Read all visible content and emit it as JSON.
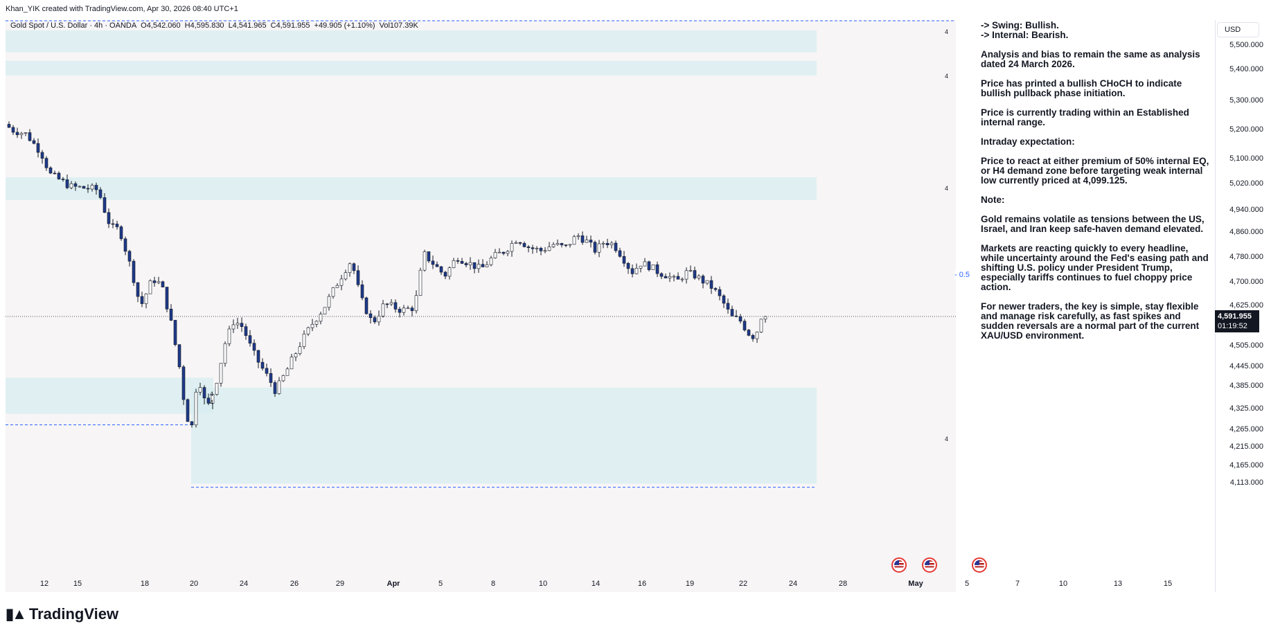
{
  "header": {
    "credit": "Khan_YIK created with TradingView.com, Apr 30, 2026 08:40 UTC+1"
  },
  "legend": {
    "symbol": "Gold Spot / U.S. Dollar · 4h · OANDA",
    "open": "O4,542.060",
    "high": "H4,595.830",
    "low": "L4,541.965",
    "close": "C4,591.955",
    "change": "+49.905 (+1.10%)",
    "volume": "Vol107.39K"
  },
  "price_axis": {
    "currency": "USD",
    "current_price": "4,591.955",
    "countdown": "01:19:52"
  },
  "level_marker": "- 0.5",
  "zone_tags": [
    "4",
    "4",
    "4",
    "4",
    "4",
    "4"
  ],
  "notes": [
    "-> Swing:  Bullish.\n-> Internal:  Bearish.",
    "Analysis and bias to remain the same as analysis dated 24 March 2026.",
    "Price has printed a bullish CHoCH to indicate bullish pullback phase initiation.",
    "Price is currently trading within an Established internal range.",
    "Intraday expectation:",
    "Price to react at either premium of 50% internal EQ, or H4 demand zone before targeting weak internal low currently priced at 4,099.125.",
    "Note:",
    "Gold remains volatile as tensions between the US, Israel, and Iran keep safe-haven demand elevated.",
    "Markets are reacting quickly to every headline, while uncertainty around the Fed's easing path and shifting U.S. policy under President Trump, especially tariffs continues to fuel choppy price action.",
    "For newer traders, the key is simple, stay flexible and manage risk carefully, as fast spikes and sudden reversals are a normal part of the current XAU/USD environment."
  ],
  "logo": {
    "text": "TradingView"
  },
  "colors": {
    "candle_up": "#ffffff",
    "candle_down": "#1e3a8a",
    "wick": "#131722",
    "zone": "#d8eef0",
    "dashed_line": "#2962ff",
    "background": "#f7f5f6"
  },
  "chart_data": {
    "type": "candlestick",
    "title": "Gold Spot / U.S. Dollar · 4h · OANDA",
    "ylim": [
      4090,
      5560
    ],
    "y_ticks": [
      5500,
      5400,
      5300,
      5200,
      5100,
      5020,
      4940,
      4860,
      4780,
      4700,
      4625,
      4505,
      4445,
      4385,
      4325,
      4265,
      4215,
      4165,
      4113
    ],
    "y_tick_labels": [
      "5,500.000",
      "5,400.000",
      "5,300.000",
      "5,200.000",
      "5,100.000",
      "5,020.000",
      "4,940.000",
      "4,860.000",
      "4,780.000",
      "4,700.000",
      "4,625.000",
      "4,505.000",
      "4,445.000",
      "4,385.000",
      "4,325.000",
      "4,265.000",
      "4,215.000",
      "4,165.000",
      "4,113.000"
    ],
    "x_labels": [
      "12",
      "15",
      "18",
      "20",
      "24",
      "26",
      "29",
      "Apr",
      "5",
      "8",
      "10",
      "14",
      "16",
      "19",
      "22",
      "24",
      "28",
      "May",
      "5",
      "7",
      "10",
      "13",
      "15"
    ],
    "current_price": 4591.955,
    "zones": [
      {
        "top": 5560,
        "bottom": 5470
      },
      {
        "top": 5435,
        "bottom": 5380
      },
      {
        "top": 5040,
        "bottom": 4970
      },
      {
        "top": 4410,
        "bottom": 4310
      },
      {
        "top": 4380,
        "bottom": 4110
      }
    ],
    "levels": [
      {
        "name": "0.5",
        "value": 4850
      },
      {
        "name": "swing high",
        "value": 5565
      },
      {
        "name": "prior low",
        "value": 4278
      },
      {
        "name": "weak internal low",
        "value": 4099.125
      }
    ],
    "anchors": [
      [
        0,
        5218
      ],
      [
        6,
        5195
      ],
      [
        14,
        5185
      ],
      [
        24,
        5120
      ],
      [
        30,
        5050
      ],
      [
        44,
        5010
      ],
      [
        56,
        5005
      ],
      [
        62,
        5000
      ],
      [
        70,
        4880
      ],
      [
        76,
        4870
      ],
      [
        84,
        4740
      ],
      [
        90,
        4620
      ],
      [
        98,
        4710
      ],
      [
        104,
        4690
      ],
      [
        110,
        4580
      ],
      [
        116,
        4440
      ],
      [
        120,
        4310
      ],
      [
        124,
        4270
      ],
      [
        128,
        4420
      ],
      [
        134,
        4320
      ],
      [
        140,
        4390
      ],
      [
        146,
        4510
      ],
      [
        152,
        4580
      ],
      [
        158,
        4560
      ],
      [
        164,
        4490
      ],
      [
        172,
        4430
      ],
      [
        180,
        4370
      ],
      [
        188,
        4440
      ],
      [
        196,
        4510
      ],
      [
        204,
        4570
      ],
      [
        212,
        4620
      ],
      [
        220,
        4690
      ],
      [
        226,
        4740
      ],
      [
        230,
        4770
      ],
      [
        236,
        4650
      ],
      [
        244,
        4570
      ],
      [
        252,
        4630
      ],
      [
        258,
        4620
      ],
      [
        264,
        4610
      ],
      [
        272,
        4620
      ],
      [
        278,
        4790
      ],
      [
        284,
        4760
      ],
      [
        292,
        4720
      ],
      [
        300,
        4780
      ],
      [
        308,
        4760
      ],
      [
        316,
        4740
      ],
      [
        324,
        4780
      ],
      [
        332,
        4800
      ],
      [
        340,
        4840
      ],
      [
        348,
        4810
      ],
      [
        356,
        4800
      ],
      [
        364,
        4820
      ],
      [
        372,
        4810
      ],
      [
        380,
        4850
      ],
      [
        386,
        4830
      ],
      [
        392,
        4800
      ],
      [
        398,
        4830
      ],
      [
        404,
        4820
      ],
      [
        410,
        4780
      ],
      [
        416,
        4730
      ],
      [
        422,
        4760
      ],
      [
        428,
        4750
      ],
      [
        434,
        4730
      ],
      [
        440,
        4720
      ],
      [
        446,
        4700
      ],
      [
        452,
        4730
      ],
      [
        458,
        4720
      ],
      [
        464,
        4700
      ],
      [
        470,
        4680
      ],
      [
        476,
        4640
      ],
      [
        482,
        4590
      ],
      [
        488,
        4580
      ],
      [
        494,
        4540
      ],
      [
        498,
        4530
      ],
      [
        502,
        4592
      ]
    ]
  }
}
